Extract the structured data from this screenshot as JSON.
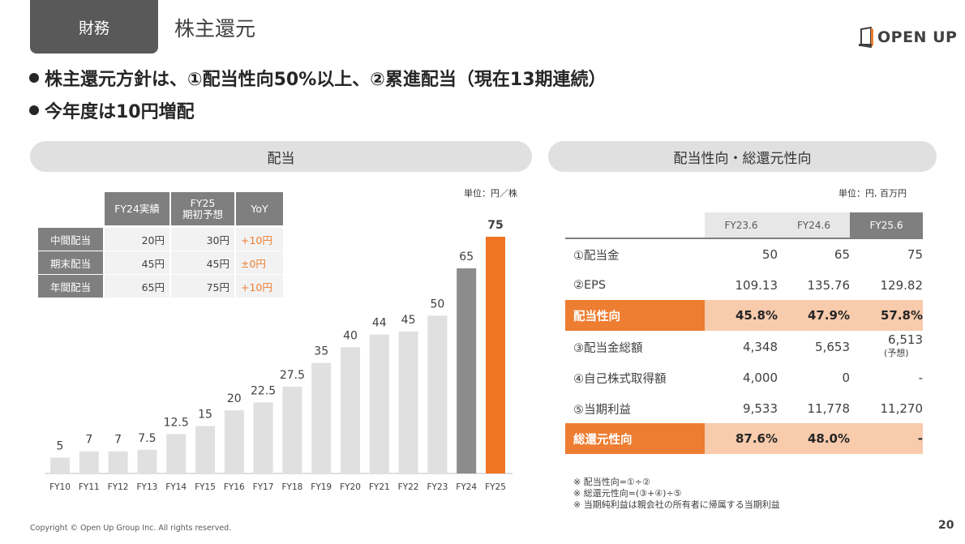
{
  "header": {
    "section_tag": "財務",
    "title": "株主還元",
    "logo_text": "OPEN UP"
  },
  "bullets": [
    "株主還元方針は、①配当性向50%以上、②累進配当（現在13期連続）",
    "今年度は10円増配"
  ],
  "left_panel": {
    "title": "配当",
    "unit": "単位：円／株",
    "table": {
      "headers": [
        "FY24実績",
        "FY25",
        "期初予想",
        "YoY"
      ],
      "rows": [
        {
          "label": "中間配当",
          "fy24": "20円",
          "fy25": "30円",
          "yoy": "+10円"
        },
        {
          "label": "期末配当",
          "fy24": "45円",
          "fy25": "45円",
          "yoy": "±0円"
        },
        {
          "label": "年間配当",
          "fy24": "65円",
          "fy25": "75円",
          "yoy": "+10円"
        }
      ]
    }
  },
  "chart_data": {
    "type": "bar",
    "categories": [
      "FY10",
      "FY11",
      "FY12",
      "FY13",
      "FY14",
      "FY15",
      "FY16",
      "FY17",
      "FY18",
      "FY19",
      "FY20",
      "FY21",
      "FY22",
      "FY23",
      "FY24",
      "FY25"
    ],
    "values": [
      5,
      7,
      7,
      7.5,
      12.5,
      15,
      20,
      22.5,
      27.5,
      35,
      40,
      44,
      45,
      50,
      65,
      75
    ],
    "labels": [
      "5",
      "7",
      "7",
      "7.5",
      "12.5",
      "15",
      "20",
      "22.5",
      "27.5",
      "35",
      "40",
      "44",
      "45",
      "50",
      "65",
      "75"
    ],
    "ylim": [
      0,
      75
    ],
    "colors": {
      "past": "#e0e0e0",
      "fy24": "#8c8c8c",
      "fy25": "#f07421"
    },
    "grid": false,
    "title": "",
    "xlabel": "",
    "ylabel": ""
  },
  "right_panel": {
    "title": "配当性向・総還元性向",
    "unit": "単位：円, 百万円",
    "columns": [
      "FY23.6",
      "FY24.6",
      "FY25.6"
    ],
    "rows": [
      {
        "label": "①配当金",
        "values": [
          "50",
          "65",
          "75"
        ],
        "highlight": false
      },
      {
        "label": "②EPS",
        "values": [
          "109.13",
          "135.76",
          "129.82"
        ],
        "highlight": false
      },
      {
        "label": "配当性向",
        "values": [
          "45.8%",
          "47.9%",
          "57.8%"
        ],
        "highlight": true
      },
      {
        "label": "③配当金総額",
        "values": [
          "4,348",
          "5,653",
          "6,513"
        ],
        "highlight": false
      },
      {
        "label": "④自己株式取得額",
        "values": [
          "4,000",
          "0",
          "-"
        ],
        "highlight": false
      },
      {
        "label": "⑤当期利益",
        "values": [
          "9,533",
          "11,778",
          "11,270"
        ],
        "highlight": false
      },
      {
        "label": "総還元性向",
        "values": [
          "87.6%",
          "48.0%",
          "-"
        ],
        "highlight": true
      }
    ],
    "forecast_note": "(予想)",
    "notes": [
      "※ 配当性向=①÷②",
      "※ 総還元性向=(③+④)÷⑤",
      "※ 当期純利益は親会社の所有者に帰属する当期利益"
    ]
  },
  "footer": {
    "copyright": "Copyright © Open Up Group Inc. All rights reserved.",
    "page": "20"
  },
  "colors": {
    "accent": "#ed7d31",
    "accent_light": "#f8cbad",
    "dark_gray": "#595959"
  }
}
